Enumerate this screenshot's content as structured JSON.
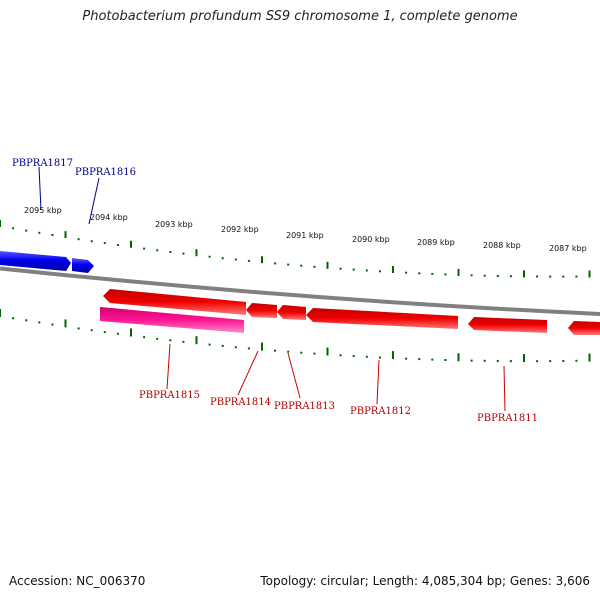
{
  "title": "Photobacterium profundum SS9 chromosome 1, complete genome",
  "footer": {
    "accession": "Accession: NC_006370",
    "summary": "Topology: circular; Length: 4,085,304 bp; Genes: 3,606"
  },
  "scale_labels": [
    "2095 kbp",
    "2094 kbp",
    "2093 kbp",
    "2092 kbp",
    "2091 kbp",
    "2090 kbp",
    "2089 kbp",
    "2088 kbp",
    "2087 kbp"
  ],
  "genes": {
    "forward": [
      {
        "id": "fwd-a",
        "label": "PBPRA1817",
        "color": "#0000ee"
      },
      {
        "id": "fwd-b",
        "label": "PBPRA1816",
        "color": "#0000ee"
      }
    ],
    "reverse": [
      {
        "id": "rev-a",
        "label": "PBPRA1815",
        "color": "#ff1493"
      },
      {
        "id": "rev-b",
        "label": "PBPRA1814",
        "color": "#ee0000"
      },
      {
        "id": "rev-c",
        "label": "PBPRA1813",
        "color": "#ee0000"
      },
      {
        "id": "rev-d",
        "label": "PBPRA1812",
        "color": "#ee0000"
      },
      {
        "id": "rev-e",
        "label": "PBPRA1811",
        "color": "#ee0000"
      }
    ]
  },
  "colors": {
    "forward_gene": "#0000ee",
    "reverse_gene": "#ee0000",
    "pseudo_gene": "#ff1493",
    "backbone": "#808080",
    "ticks": "#006400",
    "forward_label": "#00008b",
    "reverse_label": "#b00000"
  }
}
